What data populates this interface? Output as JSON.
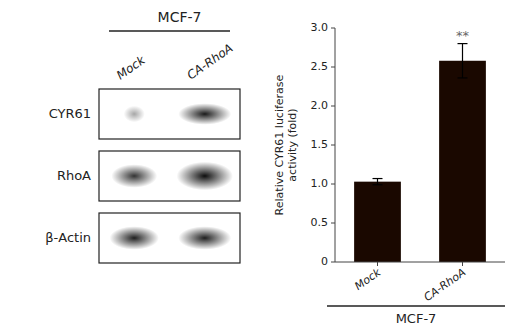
{
  "chart_data": [
    {
      "type": "bar",
      "categories": [
        "Mock",
        "CA-RhoA"
      ],
      "values": [
        1.03,
        2.58
      ],
      "errors": [
        0.04,
        0.22
      ],
      "color": "#1a0800",
      "ylabel": "Relative CYR61 luciferase\nactivity (fold)",
      "xlabel": "MCF-7",
      "annotations": [
        {
          "text": "**",
          "category": "CA-RhoA"
        }
      ],
      "ylim": [
        0,
        3.0
      ],
      "yticks": [
        0,
        0.5,
        {
          "value": 1.0,
          "label": "1.0"
        },
        1.5,
        {
          "value": 2.0,
          "label": "2.0"
        },
        2.5,
        {
          "value": 3.0,
          "label": "3.0"
        }
      ],
      "grid": false
    },
    {
      "type": "blot",
      "title": "MCF-7",
      "categories": [
        "Mock",
        "CA-RhoA"
      ],
      "rows": [
        "CYR61",
        "RhoA",
        "β-Actin"
      ]
    }
  ]
}
